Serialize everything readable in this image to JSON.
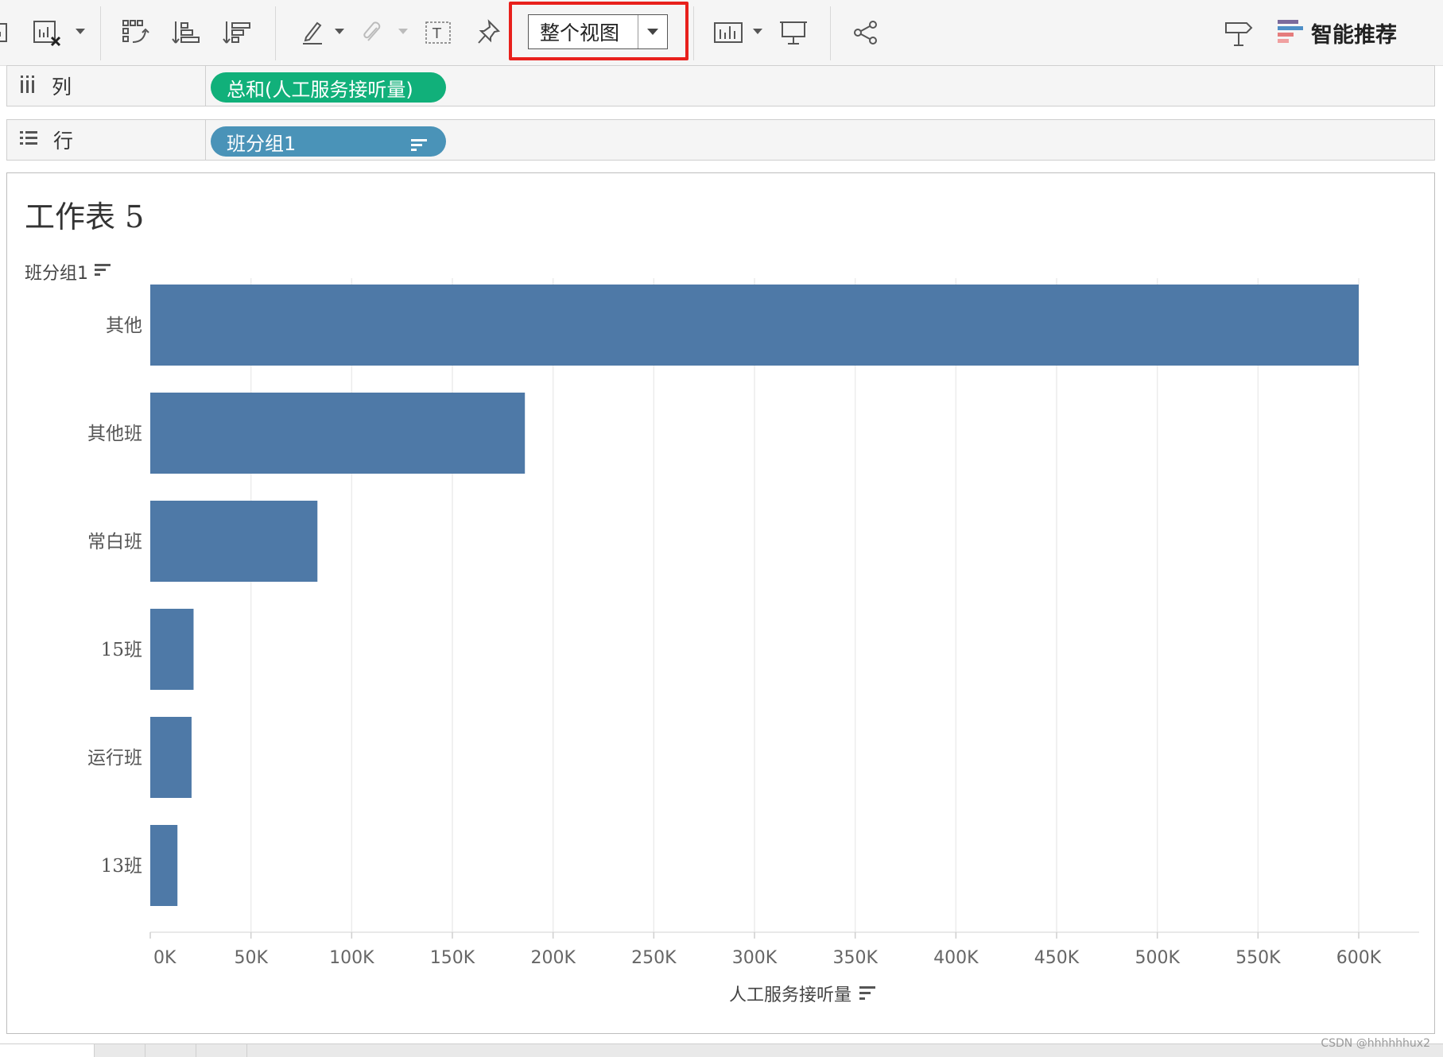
{
  "toolbar": {
    "fit_select_value": "整个视图",
    "show_me_label": "智能推荐"
  },
  "shelves": {
    "columns": {
      "label": "列",
      "pill": "总和(人工服务接听量)"
    },
    "rows": {
      "label": "行",
      "pill": "班分组1"
    }
  },
  "sheet": {
    "title": "工作表 5",
    "row_header": "班分组1"
  },
  "colors": {
    "bar": "#4e79a7",
    "pill_measure": "#11b07a",
    "pill_dimension": "#4a93b8",
    "highlight": "#e8201c"
  },
  "chart_data": {
    "type": "bar",
    "orientation": "horizontal",
    "categories": [
      "其他",
      "其他班",
      "常白班",
      "15班",
      "运行班",
      "13班"
    ],
    "values": [
      600000,
      186000,
      83000,
      21500,
      20500,
      13500
    ],
    "xlabel": "人工服务接听量",
    "ylabel": "班分组1",
    "xlim": [
      0,
      600000
    ],
    "ticks": [
      0,
      50000,
      100000,
      150000,
      200000,
      250000,
      300000,
      350000,
      400000,
      450000,
      500000,
      550000,
      600000
    ],
    "tick_labels": [
      "0K",
      "50K",
      "100K",
      "150K",
      "200K",
      "250K",
      "300K",
      "350K",
      "400K",
      "450K",
      "500K",
      "550K",
      "600K"
    ],
    "grid": true
  },
  "footer": {
    "watermark": "CSDN @hhhhhhux2"
  }
}
